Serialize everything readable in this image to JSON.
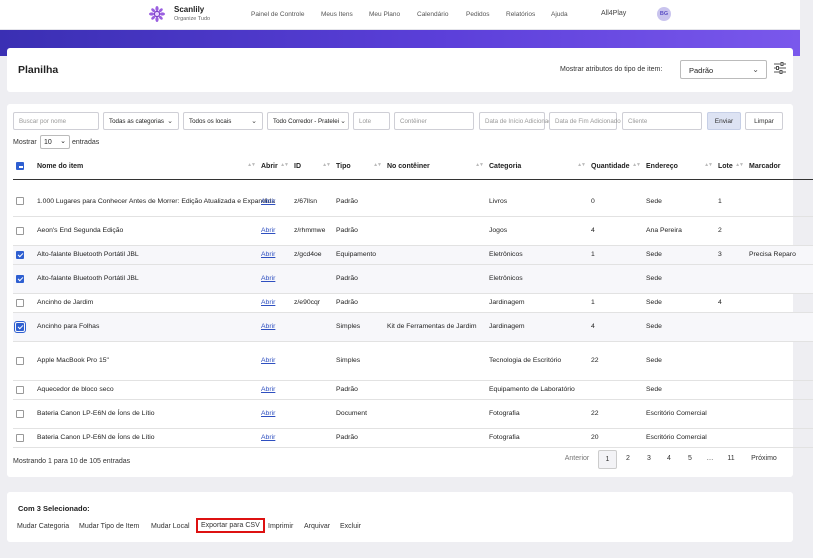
{
  "nav": {
    "brand": "Scanlily",
    "tagline": "Organize Tudo",
    "links": [
      "Painel de Controle",
      "Meus Itens",
      "Meu Plano",
      "Calendário",
      "Pedidos",
      "Relatórios",
      "Ajuda"
    ],
    "account": "All4Play",
    "avatar_initials": "BG"
  },
  "header": {
    "title": "Planilha",
    "attr_label": "Mostrar atributos do tipo de item:",
    "type_value": "Padrão"
  },
  "filters": {
    "name_placeholder": "Buscar por nome",
    "category": "Todas as categorias",
    "location": "Todos os locais",
    "aisle": "Todo Corredor - Pratelei",
    "lot_placeholder": "Lote",
    "container_placeholder": "Contêiner",
    "start_date_placeholder": "Data de Início Adicionado",
    "end_date_placeholder": "Data de Fim Adicionado",
    "client_placeholder": "Cliente",
    "submit": "Enviar",
    "clear": "Limpar"
  },
  "length": {
    "prefix": "Mostrar",
    "value": "10",
    "suffix": "entradas"
  },
  "table": {
    "columns": [
      "Nome do item",
      "Abrir",
      "ID",
      "Tipo",
      "No contêiner",
      "Categoria",
      "Quantidade",
      "Endereço",
      "Lote",
      "Marcador"
    ],
    "open_label": "Abrir",
    "rows": [
      {
        "name": "1.000 Lugares para Conhecer Antes de Morrer: Edição Atualizada e Expandida",
        "id": "z/67llsn",
        "type": "Padrão",
        "container": "",
        "category": "Livros",
        "qty": "0",
        "address": "Sede",
        "lot": "1",
        "marker": "",
        "checked": false
      },
      {
        "name": "Aeon's End Segunda Edição",
        "id": "z/rhmmwe",
        "type": "Padrão",
        "container": "",
        "category": "Jogos",
        "qty": "4",
        "address": "Ana Pereira",
        "lot": "2",
        "marker": "",
        "checked": false
      },
      {
        "name": "Alto-falante Bluetooth Portátil JBL",
        "id": "z/gcd4oe",
        "type": "Equipamento",
        "container": "",
        "category": "Eletrônicos",
        "qty": "1",
        "address": "Sede",
        "lot": "3",
        "marker": "Precisa Reparo",
        "checked": true
      },
      {
        "name": "Alto-falante Bluetooth Portátil JBL",
        "id": "",
        "type": "Padrão",
        "container": "",
        "category": "Eletrônicos",
        "qty": "",
        "address": "Sede",
        "lot": "",
        "marker": "",
        "checked": true
      },
      {
        "name": "Ancinho de Jardim",
        "id": "z/e90cqr",
        "type": "Padrão",
        "container": "",
        "category": "Jardinagem",
        "qty": "1",
        "address": "Sede",
        "lot": "4",
        "marker": "",
        "checked": false
      },
      {
        "name": "Ancinho para Folhas",
        "id": "",
        "type": "Simples",
        "container": "Kit de Ferramentas de Jardim",
        "category": "Jardinagem",
        "qty": "4",
        "address": "Sede",
        "lot": "",
        "marker": "",
        "checked": true
      },
      {
        "name": "Apple MacBook Pro 15\"",
        "id": "",
        "type": "Simples",
        "container": "",
        "category": "Tecnologia de Escritório",
        "qty": "22",
        "address": "Sede",
        "lot": "",
        "marker": "",
        "checked": false
      },
      {
        "name": "Aquecedor de bloco seco",
        "id": "",
        "type": "Padrão",
        "container": "",
        "category": "Equipamento de Laboratório",
        "qty": "",
        "address": "Sede",
        "lot": "",
        "marker": "",
        "checked": false
      },
      {
        "name": "Bateria Canon LP-E6N de Íons de Lítio",
        "id": "",
        "type": "Document",
        "container": "",
        "category": "Fotografia",
        "qty": "22",
        "address": "Escritório Comercial",
        "lot": "",
        "marker": "",
        "checked": false
      },
      {
        "name": "Bateria Canon LP-E6N de Íons de Lítio",
        "id": "",
        "type": "Padrão",
        "container": "",
        "category": "Fotografia",
        "qty": "20",
        "address": "Escritório Comercial",
        "lot": "",
        "marker": "",
        "checked": false
      }
    ]
  },
  "footer": {
    "info": "Mostrando 1 para 10 de 105 entradas",
    "prev": "Anterior",
    "pages": [
      "1",
      "2",
      "3",
      "4",
      "5",
      "…",
      "11"
    ],
    "next": "Próximo"
  },
  "bulk": {
    "title": "Com 3 Selecionado:",
    "actions": [
      "Mudar Categoria",
      "Mudar Tipo de Item",
      "Mudar Local",
      "Exportar para CSV",
      "Imprimir",
      "Arquivar",
      "Excluir"
    ]
  },
  "colors": {
    "accent": "#2e5fd1",
    "banner": "#4a35c8",
    "highlight": "#dd1111"
  }
}
